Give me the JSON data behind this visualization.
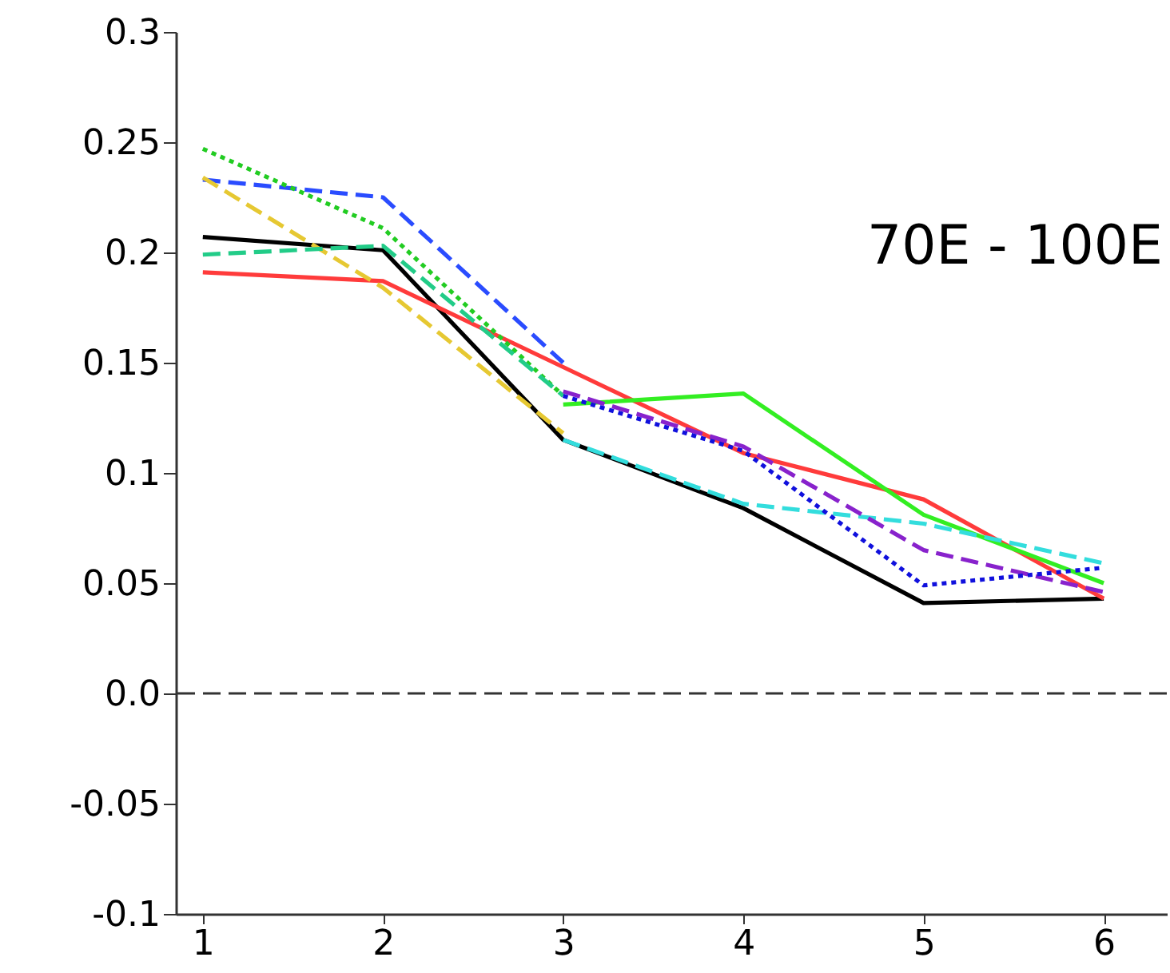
{
  "chart_data": {
    "type": "line",
    "x": [
      1,
      2,
      3,
      4,
      5,
      6
    ],
    "xlim": [
      0.85,
      6.35
    ],
    "xticks": [
      1,
      2,
      3,
      4,
      5,
      6
    ],
    "ylim": [
      -0.1,
      0.3
    ],
    "yticks": [
      -0.1,
      -0.05,
      {
        "value": 0,
        "label": "0.0"
      },
      0.05,
      0.1,
      0.15,
      0.2,
      0.25,
      0.3
    ],
    "grid": false,
    "marker": "none",
    "annotations": [
      "70E - 100E"
    ],
    "ref_lines": [
      {
        "axis": "y",
        "value": 0,
        "color": "#333333",
        "line_style": "dashed"
      }
    ],
    "series": [
      {
        "color": "#000000",
        "line_style": "solid",
        "values": [
          0.207,
          0.201,
          0.115,
          0.084,
          0.041,
          0.043
        ]
      },
      {
        "color": "#ff3b3b",
        "line_style": "solid",
        "values": [
          0.191,
          0.187,
          0.148,
          0.109,
          0.088,
          0.043
        ]
      },
      {
        "color": "#2a4cff",
        "line_style": "dashed",
        "values": [
          0.233,
          0.225,
          0.15,
          null,
          null,
          null
        ]
      },
      {
        "color": "#22cc22",
        "line_style": "dotted",
        "values": [
          0.247,
          0.211,
          0.135,
          null,
          null,
          null
        ]
      },
      {
        "color": "#33ee22",
        "line_style": "solid",
        "values": [
          null,
          null,
          0.131,
          0.136,
          0.081,
          0.05
        ]
      },
      {
        "color": "#e6c832",
        "line_style": "dashed",
        "values": [
          0.234,
          0.184,
          0.118,
          null,
          null,
          null
        ]
      },
      {
        "color": "#22cc88",
        "line_style": "dashed",
        "values": [
          0.199,
          0.203,
          0.135,
          null,
          null,
          null
        ]
      },
      {
        "color": "#33dddd",
        "line_style": "dashed",
        "values": [
          null,
          null,
          0.115,
          0.086,
          0.077,
          0.059
        ]
      },
      {
        "color": "#8822cc",
        "line_style": "dashed",
        "values": [
          null,
          null,
          0.137,
          0.112,
          0.065,
          0.046
        ]
      },
      {
        "color": "#1010dd",
        "line_style": "dotted",
        "values": [
          null,
          null,
          0.135,
          0.11,
          0.049,
          0.057
        ]
      }
    ]
  }
}
